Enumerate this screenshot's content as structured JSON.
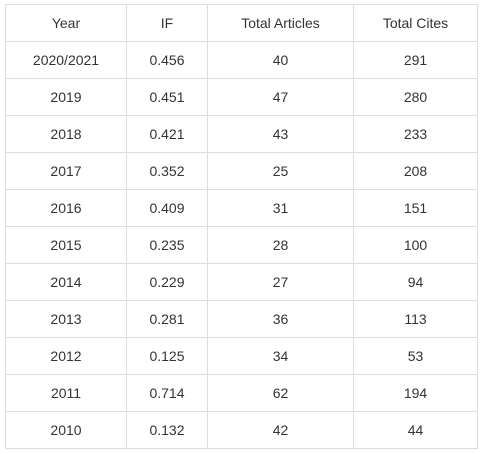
{
  "table": {
    "headers": [
      "Year",
      "IF",
      "Total Articles",
      "Total Cites"
    ],
    "rows": [
      [
        "2020/2021",
        "0.456",
        "40",
        "291"
      ],
      [
        "2019",
        "0.451",
        "47",
        "280"
      ],
      [
        "2018",
        "0.421",
        "43",
        "233"
      ],
      [
        "2017",
        "0.352",
        "25",
        "208"
      ],
      [
        "2016",
        "0.409",
        "31",
        "151"
      ],
      [
        "2015",
        "0.235",
        "28",
        "100"
      ],
      [
        "2014",
        "0.229",
        "27",
        "94"
      ],
      [
        "2013",
        "0.281",
        "36",
        "113"
      ],
      [
        "2012",
        "0.125",
        "34",
        "53"
      ],
      [
        "2011",
        "0.714",
        "62",
        "194"
      ],
      [
        "2010",
        "0.132",
        "42",
        "44"
      ]
    ]
  }
}
